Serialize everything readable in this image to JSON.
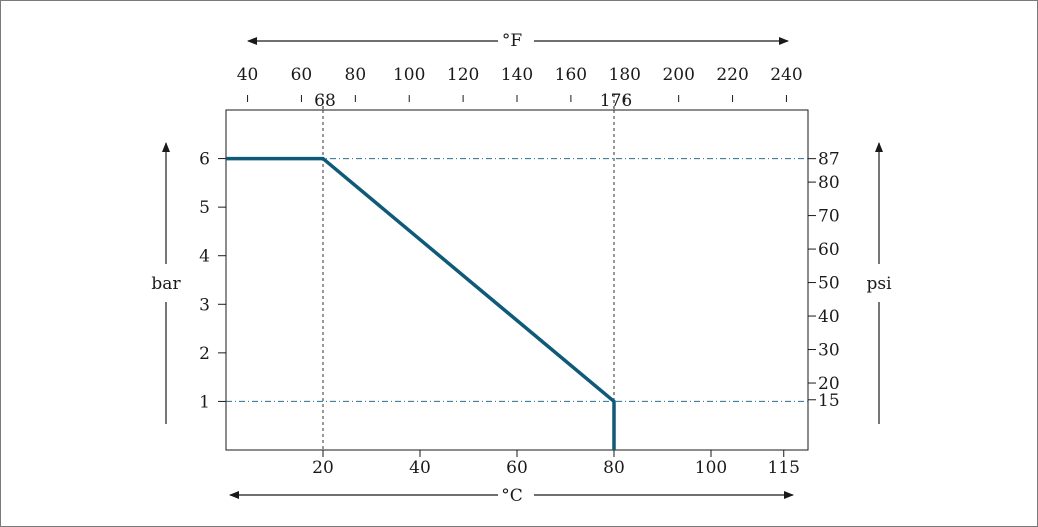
{
  "chart_data": {
    "type": "line",
    "xlabel": "°C",
    "ylabel": "bar",
    "x_ticks": [
      "20",
      "40",
      "60",
      "80",
      "100",
      "115"
    ],
    "x_range": [
      0,
      120
    ],
    "y_ticks": [
      "1",
      "2",
      "3",
      "4",
      "5",
      "6"
    ],
    "y_range": [
      0,
      7
    ],
    "secondary_x": {
      "label": "°F",
      "ticks": [
        {
          "label": "40",
          "value": 40
        },
        {
          "label": "60",
          "value": 60
        },
        {
          "label": "80",
          "value": 80
        },
        {
          "label": "100",
          "value": 100
        },
        {
          "label": "120",
          "value": 120
        },
        {
          "label": "140",
          "value": 140
        },
        {
          "label": "160",
          "value": 160
        },
        {
          "label": "180",
          "value": 180
        },
        {
          "label": "200",
          "value": 200
        },
        {
          "label": "220",
          "value": 220
        },
        {
          "label": "240",
          "value": 240
        }
      ],
      "marked": [
        {
          "label": "68",
          "value": 68
        },
        {
          "label": "176",
          "value": 176
        }
      ]
    },
    "secondary_y": {
      "label": "psi",
      "ticks": [
        {
          "label": "15",
          "value": 15
        },
        {
          "label": "20",
          "value": 20
        },
        {
          "label": "30",
          "value": 30
        },
        {
          "label": "40",
          "value": 40
        },
        {
          "label": "50",
          "value": 50
        },
        {
          "label": "60",
          "value": 60
        },
        {
          "label": "70",
          "value": 70
        },
        {
          "label": "80",
          "value": 80
        },
        {
          "label": "87",
          "value": 87
        }
      ]
    },
    "series": [
      {
        "x": [
          0,
          20,
          80,
          80
        ],
        "y": [
          6,
          6,
          1,
          0
        ],
        "color": "#0e5a78"
      }
    ],
    "reference_lines": {
      "vertical": [
        20,
        80
      ],
      "horizontal": [
        6,
        1
      ]
    }
  }
}
